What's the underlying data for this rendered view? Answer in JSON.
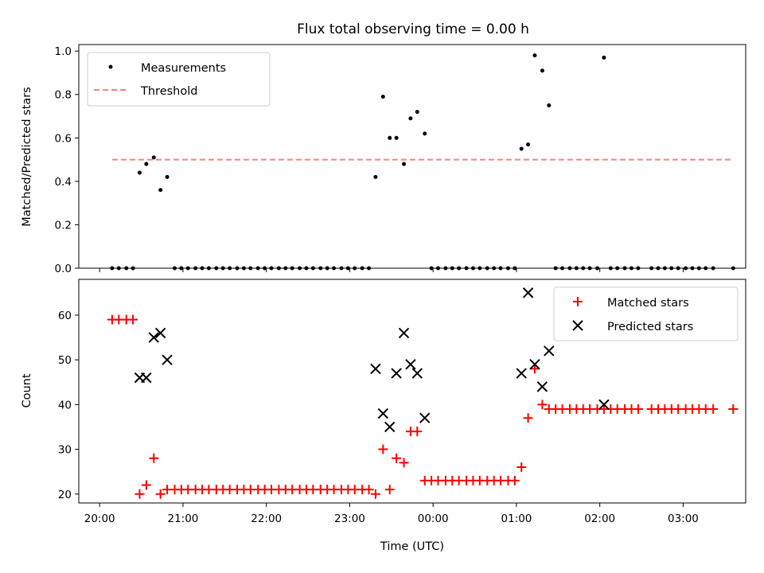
{
  "chart_data": [
    {
      "type": "scatter",
      "title": "Flux total observing time = 0.00 h",
      "xlabel": "",
      "ylabel": "Matched/Predicted stars",
      "x_unit": "hours since 20:00 UTC",
      "xlim": [
        -0.25,
        7.75
      ],
      "ylim": [
        0,
        1.03
      ],
      "yticks": [
        0.0,
        0.2,
        0.4,
        0.6,
        0.8,
        1.0
      ],
      "ytick_labels": [
        "0.0",
        "0.2",
        "0.4",
        "0.6",
        "0.8",
        "1.0"
      ],
      "xticks": [
        0,
        1,
        2,
        3,
        4,
        5,
        6,
        7
      ],
      "show_xtick_labels": false,
      "grid": false,
      "legend": "top-left",
      "threshold": {
        "name": "Threshold",
        "value": 0.5,
        "x_start": 0.15,
        "x_end": 7.58,
        "color": "#ff7f7f"
      },
      "series": [
        {
          "name": "Measurements",
          "marker": "dot",
          "color": "#000000",
          "points": [
            [
              0.15,
              0
            ],
            [
              0.23,
              0
            ],
            [
              0.32,
              0
            ],
            [
              0.4,
              0
            ],
            [
              0.48,
              0.44
            ],
            [
              0.56,
              0.48
            ],
            [
              0.65,
              0.51
            ],
            [
              0.73,
              0.36
            ],
            [
              0.81,
              0.42
            ],
            [
              0.9,
              0
            ],
            [
              0.98,
              0
            ],
            [
              1.06,
              0
            ],
            [
              1.15,
              0
            ],
            [
              1.23,
              0
            ],
            [
              1.31,
              0
            ],
            [
              1.4,
              0
            ],
            [
              1.48,
              0
            ],
            [
              1.56,
              0
            ],
            [
              1.65,
              0
            ],
            [
              1.73,
              0
            ],
            [
              1.81,
              0
            ],
            [
              1.9,
              0
            ],
            [
              1.98,
              0
            ],
            [
              2.06,
              0
            ],
            [
              2.15,
              0
            ],
            [
              2.23,
              0
            ],
            [
              2.31,
              0
            ],
            [
              2.4,
              0
            ],
            [
              2.48,
              0
            ],
            [
              2.56,
              0
            ],
            [
              2.65,
              0
            ],
            [
              2.73,
              0
            ],
            [
              2.81,
              0
            ],
            [
              2.9,
              0
            ],
            [
              2.98,
              0
            ],
            [
              3.06,
              0
            ],
            [
              3.15,
              0
            ],
            [
              3.23,
              0
            ],
            [
              3.31,
              0.42
            ],
            [
              3.4,
              0.79
            ],
            [
              3.48,
              0.6
            ],
            [
              3.56,
              0.6
            ],
            [
              3.65,
              0.48
            ],
            [
              3.73,
              0.69
            ],
            [
              3.81,
              0.72
            ],
            [
              3.9,
              0.62
            ],
            [
              3.98,
              0
            ],
            [
              4.06,
              0
            ],
            [
              4.15,
              0
            ],
            [
              4.23,
              0
            ],
            [
              4.31,
              0
            ],
            [
              4.4,
              0
            ],
            [
              4.48,
              0
            ],
            [
              4.56,
              0
            ],
            [
              4.65,
              0
            ],
            [
              4.73,
              0
            ],
            [
              4.81,
              0
            ],
            [
              4.9,
              0
            ],
            [
              4.98,
              0
            ],
            [
              5.06,
              0.55
            ],
            [
              5.14,
              0.57
            ],
            [
              5.22,
              0.98
            ],
            [
              5.31,
              0.91
            ],
            [
              5.39,
              0.75
            ],
            [
              5.47,
              0
            ],
            [
              5.55,
              0
            ],
            [
              5.64,
              0
            ],
            [
              5.72,
              0
            ],
            [
              5.8,
              0
            ],
            [
              5.88,
              0
            ],
            [
              5.97,
              0
            ],
            [
              6.05,
              0.97
            ],
            [
              6.13,
              0
            ],
            [
              6.21,
              0
            ],
            [
              6.3,
              0
            ],
            [
              6.38,
              0
            ],
            [
              6.46,
              0
            ],
            [
              6.62,
              0
            ],
            [
              6.7,
              0
            ],
            [
              6.78,
              0
            ],
            [
              6.86,
              0
            ],
            [
              6.94,
              0
            ],
            [
              7.03,
              0
            ],
            [
              7.11,
              0
            ],
            [
              7.19,
              0
            ],
            [
              7.27,
              0
            ],
            [
              7.36,
              0
            ],
            [
              7.6,
              0
            ]
          ]
        }
      ]
    },
    {
      "type": "scatter",
      "title": "",
      "xlabel": "Time (UTC)",
      "ylabel": "Count",
      "x_unit": "hours since 20:00 UTC",
      "xlim": [
        -0.25,
        7.75
      ],
      "ylim": [
        18,
        68
      ],
      "yticks": [
        20,
        30,
        40,
        50,
        60
      ],
      "ytick_labels": [
        "20",
        "30",
        "40",
        "50",
        "60"
      ],
      "xticks": [
        0,
        1,
        2,
        3,
        4,
        5,
        6,
        7
      ],
      "xtick_labels": [
        "20:00",
        "21:00",
        "22:00",
        "23:00",
        "00:00",
        "01:00",
        "02:00",
        "03:00"
      ],
      "grid": false,
      "legend": "top-right",
      "series": [
        {
          "name": "Matched stars",
          "marker": "plus",
          "color": "#ff0000",
          "points": [
            [
              0.15,
              59
            ],
            [
              0.23,
              59
            ],
            [
              0.32,
              59
            ],
            [
              0.4,
              59
            ],
            [
              0.48,
              20
            ],
            [
              0.56,
              22
            ],
            [
              0.65,
              28
            ],
            [
              0.73,
              20
            ],
            [
              0.81,
              21
            ],
            [
              0.9,
              21
            ],
            [
              0.98,
              21
            ],
            [
              1.06,
              21
            ],
            [
              1.15,
              21
            ],
            [
              1.23,
              21
            ],
            [
              1.31,
              21
            ],
            [
              1.4,
              21
            ],
            [
              1.48,
              21
            ],
            [
              1.56,
              21
            ],
            [
              1.65,
              21
            ],
            [
              1.73,
              21
            ],
            [
              1.81,
              21
            ],
            [
              1.9,
              21
            ],
            [
              1.98,
              21
            ],
            [
              2.06,
              21
            ],
            [
              2.15,
              21
            ],
            [
              2.23,
              21
            ],
            [
              2.31,
              21
            ],
            [
              2.4,
              21
            ],
            [
              2.48,
              21
            ],
            [
              2.56,
              21
            ],
            [
              2.65,
              21
            ],
            [
              2.73,
              21
            ],
            [
              2.81,
              21
            ],
            [
              2.9,
              21
            ],
            [
              2.98,
              21
            ],
            [
              3.06,
              21
            ],
            [
              3.15,
              21
            ],
            [
              3.23,
              21
            ],
            [
              3.31,
              20
            ],
            [
              3.4,
              30
            ],
            [
              3.48,
              21
            ],
            [
              3.56,
              28
            ],
            [
              3.65,
              27
            ],
            [
              3.73,
              34
            ],
            [
              3.81,
              34
            ],
            [
              3.9,
              23
            ],
            [
              3.98,
              23
            ],
            [
              4.06,
              23
            ],
            [
              4.15,
              23
            ],
            [
              4.23,
              23
            ],
            [
              4.31,
              23
            ],
            [
              4.4,
              23
            ],
            [
              4.48,
              23
            ],
            [
              4.56,
              23
            ],
            [
              4.65,
              23
            ],
            [
              4.73,
              23
            ],
            [
              4.81,
              23
            ],
            [
              4.9,
              23
            ],
            [
              4.98,
              23
            ],
            [
              5.06,
              26
            ],
            [
              5.14,
              37
            ],
            [
              5.22,
              48
            ],
            [
              5.31,
              40
            ],
            [
              5.39,
              39
            ],
            [
              5.47,
              39
            ],
            [
              5.55,
              39
            ],
            [
              5.64,
              39
            ],
            [
              5.72,
              39
            ],
            [
              5.8,
              39
            ],
            [
              5.88,
              39
            ],
            [
              5.97,
              39
            ],
            [
              6.05,
              39
            ],
            [
              6.13,
              39
            ],
            [
              6.21,
              39
            ],
            [
              6.3,
              39
            ],
            [
              6.38,
              39
            ],
            [
              6.46,
              39
            ],
            [
              6.62,
              39
            ],
            [
              6.7,
              39
            ],
            [
              6.78,
              39
            ],
            [
              6.86,
              39
            ],
            [
              6.94,
              39
            ],
            [
              7.03,
              39
            ],
            [
              7.11,
              39
            ],
            [
              7.19,
              39
            ],
            [
              7.27,
              39
            ],
            [
              7.36,
              39
            ],
            [
              7.6,
              39
            ]
          ]
        },
        {
          "name": "Predicted stars",
          "marker": "x",
          "color": "#000000",
          "points": [
            [
              0.48,
              46
            ],
            [
              0.56,
              46
            ],
            [
              0.65,
              55
            ],
            [
              0.73,
              56
            ],
            [
              0.81,
              50
            ],
            [
              3.31,
              48
            ],
            [
              3.4,
              38
            ],
            [
              3.48,
              35
            ],
            [
              3.56,
              47
            ],
            [
              3.65,
              56
            ],
            [
              3.73,
              49
            ],
            [
              3.81,
              47
            ],
            [
              3.9,
              37
            ],
            [
              5.06,
              47
            ],
            [
              5.14,
              65
            ],
            [
              5.22,
              49
            ],
            [
              5.31,
              44
            ],
            [
              5.39,
              52
            ],
            [
              6.05,
              40
            ]
          ]
        }
      ]
    }
  ]
}
